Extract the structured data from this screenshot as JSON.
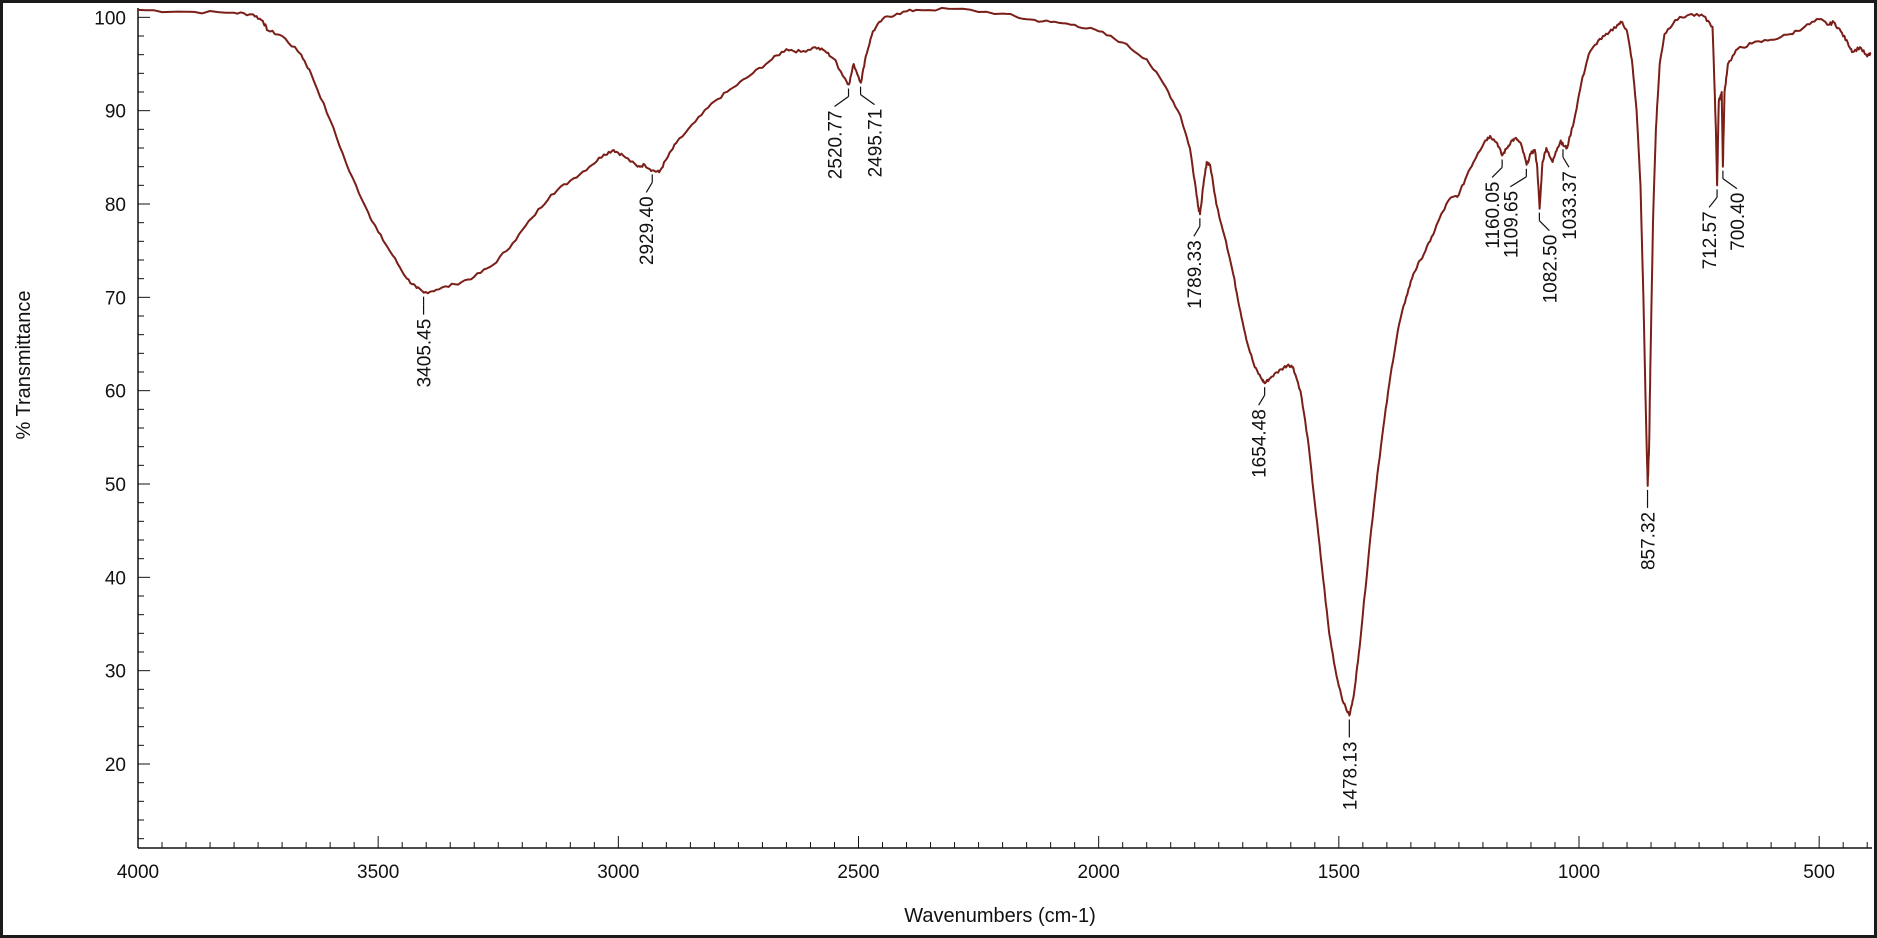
{
  "chart_data": {
    "type": "line",
    "title": "",
    "xlabel": "Wavenumbers (cm-1)",
    "ylabel": "% Transmittance",
    "xlim": [
      4000,
      390
    ],
    "ylim": [
      11,
      101
    ],
    "x_axis_reversed": true,
    "grid": false,
    "legend": "none",
    "x_ticks": [
      4000,
      3500,
      3000,
      2500,
      2000,
      1500,
      1000,
      500
    ],
    "y_ticks": [
      20,
      30,
      40,
      50,
      60,
      70,
      80,
      90,
      100
    ],
    "series": [
      {
        "color": "#7a1e18",
        "points": [
          [
            4000,
            100.8
          ],
          [
            3900,
            100.6
          ],
          [
            3800,
            100.5
          ],
          [
            3760,
            100.3
          ],
          [
            3740,
            99.6
          ],
          [
            3730,
            98.6
          ],
          [
            3700,
            98
          ],
          [
            3660,
            96
          ],
          [
            3640,
            94
          ],
          [
            3600,
            89
          ],
          [
            3560,
            83.5
          ],
          [
            3520,
            79
          ],
          [
            3500,
            77
          ],
          [
            3470,
            74.5
          ],
          [
            3440,
            72
          ],
          [
            3420,
            71
          ],
          [
            3405,
            70.5
          ],
          [
            3380,
            70.8
          ],
          [
            3340,
            71.4
          ],
          [
            3300,
            72.2
          ],
          [
            3260,
            73.5
          ],
          [
            3220,
            75.8
          ],
          [
            3180,
            78.5
          ],
          [
            3140,
            81
          ],
          [
            3100,
            82.5
          ],
          [
            3060,
            84
          ],
          [
            3030,
            85.3
          ],
          [
            3010,
            85.8
          ],
          [
            2990,
            85.2
          ],
          [
            2960,
            84
          ],
          [
            2945,
            84.2
          ],
          [
            2929,
            83.6
          ],
          [
            2915,
            83.4
          ],
          [
            2900,
            84.8
          ],
          [
            2880,
            86.5
          ],
          [
            2840,
            88.8
          ],
          [
            2800,
            91
          ],
          [
            2760,
            92.5
          ],
          [
            2720,
            94
          ],
          [
            2680,
            95.5
          ],
          [
            2650,
            96.6
          ],
          [
            2620,
            96.3
          ],
          [
            2590,
            96.8
          ],
          [
            2570,
            96.4
          ],
          [
            2550,
            95.5
          ],
          [
            2535,
            94
          ],
          [
            2520,
            92.8
          ],
          [
            2510,
            95
          ],
          [
            2495,
            93
          ],
          [
            2485,
            95.8
          ],
          [
            2470,
            98.5
          ],
          [
            2450,
            99.8
          ],
          [
            2420,
            100.4
          ],
          [
            2380,
            100.8
          ],
          [
            2300,
            100.9
          ],
          [
            2200,
            100.4
          ],
          [
            2150,
            99.8
          ],
          [
            2100,
            99.5
          ],
          [
            2050,
            99.2
          ],
          [
            2000,
            98.5
          ],
          [
            1950,
            97.3
          ],
          [
            1900,
            95.5
          ],
          [
            1860,
            92.5
          ],
          [
            1830,
            89.5
          ],
          [
            1810,
            86
          ],
          [
            1800,
            82.5
          ],
          [
            1792,
            79.5
          ],
          [
            1789,
            78.9
          ],
          [
            1782,
            82
          ],
          [
            1775,
            84.5
          ],
          [
            1768,
            84.2
          ],
          [
            1755,
            80
          ],
          [
            1735,
            76
          ],
          [
            1720,
            72.5
          ],
          [
            1705,
            68.5
          ],
          [
            1690,
            65
          ],
          [
            1675,
            62.5
          ],
          [
            1660,
            61.2
          ],
          [
            1654,
            60.8
          ],
          [
            1640,
            61.5
          ],
          [
            1620,
            62.3
          ],
          [
            1605,
            62.8
          ],
          [
            1595,
            62.5
          ],
          [
            1580,
            60
          ],
          [
            1565,
            55
          ],
          [
            1550,
            48
          ],
          [
            1535,
            41
          ],
          [
            1520,
            34
          ],
          [
            1505,
            29.5
          ],
          [
            1490,
            26.5
          ],
          [
            1478,
            25.2
          ],
          [
            1470,
            27
          ],
          [
            1460,
            31
          ],
          [
            1450,
            36
          ],
          [
            1435,
            44
          ],
          [
            1420,
            51
          ],
          [
            1405,
            57
          ],
          [
            1390,
            62.5
          ],
          [
            1375,
            67
          ],
          [
            1360,
            70
          ],
          [
            1345,
            72.5
          ],
          [
            1330,
            74
          ],
          [
            1310,
            76
          ],
          [
            1290,
            78.5
          ],
          [
            1270,
            80.5
          ],
          [
            1250,
            81
          ],
          [
            1230,
            83.5
          ],
          [
            1210,
            85.5
          ],
          [
            1195,
            86.8
          ],
          [
            1185,
            87.3
          ],
          [
            1170,
            86.5
          ],
          [
            1160,
            85.2
          ],
          [
            1150,
            86
          ],
          [
            1140,
            86.8
          ],
          [
            1130,
            87
          ],
          [
            1120,
            86.3
          ],
          [
            1109,
            84.2
          ],
          [
            1100,
            85.4
          ],
          [
            1092,
            85.8
          ],
          [
            1087,
            84
          ],
          [
            1082,
            79.5
          ],
          [
            1076,
            84.5
          ],
          [
            1068,
            86
          ],
          [
            1055,
            84.5
          ],
          [
            1045,
            86
          ],
          [
            1038,
            86.8
          ],
          [
            1033,
            86.3
          ],
          [
            1025,
            86
          ],
          [
            1010,
            89
          ],
          [
            995,
            93
          ],
          [
            980,
            96
          ],
          [
            960,
            97.5
          ],
          [
            940,
            98.2
          ],
          [
            920,
            99.2
          ],
          [
            910,
            99.5
          ],
          [
            900,
            98.5
          ],
          [
            890,
            95.5
          ],
          [
            880,
            90
          ],
          [
            872,
            82
          ],
          [
            866,
            70
          ],
          [
            861,
            58
          ],
          [
            857,
            49.8
          ],
          [
            854,
            54
          ],
          [
            851,
            64
          ],
          [
            846,
            78
          ],
          [
            840,
            88
          ],
          [
            832,
            95
          ],
          [
            822,
            98.2
          ],
          [
            800,
            99.7
          ],
          [
            770,
            100.3
          ],
          [
            740,
            100.1
          ],
          [
            722,
            99
          ],
          [
            715,
            88
          ],
          [
            712.5,
            82
          ],
          [
            709,
            91
          ],
          [
            703,
            92
          ],
          [
            700.4,
            84
          ],
          [
            697,
            92
          ],
          [
            690,
            95
          ],
          [
            670,
            96.6
          ],
          [
            640,
            97.2
          ],
          [
            600,
            97.6
          ],
          [
            560,
            98.2
          ],
          [
            530,
            99
          ],
          [
            500,
            99.8
          ],
          [
            480,
            99.2
          ],
          [
            470,
            99.5
          ],
          [
            455,
            98.5
          ],
          [
            440,
            97.2
          ],
          [
            430,
            96.3
          ],
          [
            415,
            96.8
          ],
          [
            400,
            95.8
          ],
          [
            392,
            96.2
          ]
        ]
      }
    ],
    "annotations": [
      {
        "label": "3405.45",
        "x": 3405.45,
        "y": 70.5
      },
      {
        "label": "2929.40",
        "x": 2929.4,
        "y": 83.6
      },
      {
        "label": "2520.77",
        "x": 2520.77,
        "y": 92.8
      },
      {
        "label": "2495.71",
        "x": 2495.71,
        "y": 93.0
      },
      {
        "label": "1789.33",
        "x": 1789.33,
        "y": 78.9
      },
      {
        "label": "1654.48",
        "x": 1654.48,
        "y": 60.8
      },
      {
        "label": "1478.13",
        "x": 1478.13,
        "y": 25.2
      },
      {
        "label": "1160.05",
        "x": 1160.05,
        "y": 85.2
      },
      {
        "label": "1109.65",
        "x": 1109.65,
        "y": 84.2
      },
      {
        "label": "1082.50",
        "x": 1082.5,
        "y": 79.5
      },
      {
        "label": "1033.37",
        "x": 1033.37,
        "y": 86.3
      },
      {
        "label": "857.32",
        "x": 857.32,
        "y": 49.8
      },
      {
        "label": "712.57",
        "x": 712.57,
        "y": 82.0
      },
      {
        "label": "700.40",
        "x": 700.4,
        "y": 84.0
      }
    ]
  }
}
